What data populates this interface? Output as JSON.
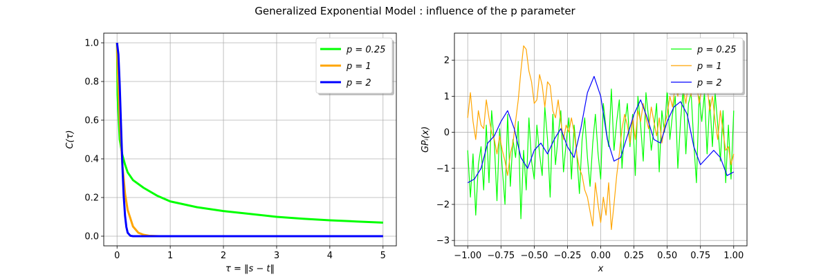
{
  "suptitle": "Generalized Exponential Model : influence of the p parameter",
  "chart_data": [
    {
      "type": "line",
      "xlabel": "τ = ‖s − t‖",
      "ylabel": "C(τ)",
      "xlim": [
        -0.25,
        5.25
      ],
      "ylim": [
        -0.05,
        1.05
      ],
      "xticks": [
        "0",
        "1",
        "2",
        "3",
        "4",
        "5"
      ],
      "yticks": [
        "0.0",
        "0.2",
        "0.4",
        "0.6",
        "0.8",
        "1.0"
      ],
      "grid": true,
      "legend_position": "top-right",
      "series": [
        {
          "name": "p = 0.25",
          "color": "#00ff00",
          "x": [
            0,
            0.01,
            0.02,
            0.05,
            0.1,
            0.15,
            0.2,
            0.3,
            0.5,
            0.75,
            1.0,
            1.5,
            2.0,
            2.5,
            3.0,
            3.5,
            4.0,
            4.5,
            5.0
          ],
          "y": [
            1.0,
            0.73,
            0.67,
            0.5,
            0.42,
            0.37,
            0.33,
            0.29,
            0.25,
            0.21,
            0.18,
            0.15,
            0.13,
            0.115,
            0.1,
            0.09,
            0.082,
            0.076,
            0.07
          ]
        },
        {
          "name": "p = 1",
          "color": "#ffa500",
          "x": [
            0,
            0.02,
            0.05,
            0.1,
            0.15,
            0.2,
            0.3,
            0.4,
            0.5,
            0.6,
            0.8,
            1.0,
            2.0,
            3.0,
            4.0,
            5.0
          ],
          "y": [
            1.0,
            0.82,
            0.61,
            0.37,
            0.22,
            0.135,
            0.05,
            0.018,
            0.007,
            0.002,
            0.0,
            0.0,
            0.0,
            0.0,
            0.0,
            0.0
          ]
        },
        {
          "name": "p = 2",
          "color": "#0000ff",
          "x": [
            0,
            0.025,
            0.05,
            0.075,
            0.1,
            0.125,
            0.15,
            0.175,
            0.2,
            0.25,
            0.3,
            0.4,
            1.0,
            2.0,
            3.0,
            4.0,
            5.0
          ],
          "y": [
            1.0,
            0.94,
            0.78,
            0.57,
            0.37,
            0.21,
            0.105,
            0.047,
            0.018,
            0.002,
            0.0,
            0.0,
            0.0,
            0.0,
            0.0,
            0.0,
            0.0
          ]
        }
      ]
    },
    {
      "type": "line",
      "xlabel": "x",
      "ylabel": "GPᵢ(x)",
      "xlim": [
        -1.1,
        1.1
      ],
      "ylim": [
        -3.15,
        2.75
      ],
      "xticks": [
        "−1.00",
        "−0.75",
        "−0.50",
        "−0.25",
        "0.00",
        "0.25",
        "0.50",
        "0.75",
        "1.00"
      ],
      "yticks": [
        "−3",
        "−2",
        "−1",
        "0",
        "1",
        "2"
      ],
      "grid": true,
      "legend_position": "top-right",
      "series": [
        {
          "name": "p = 0.25",
          "color": "#00ff00",
          "x": [
            -1.0,
            -0.98,
            -0.96,
            -0.94,
            -0.92,
            -0.9,
            -0.88,
            -0.86,
            -0.84,
            -0.82,
            -0.8,
            -0.78,
            -0.76,
            -0.74,
            -0.72,
            -0.7,
            -0.68,
            -0.66,
            -0.64,
            -0.62,
            -0.6,
            -0.58,
            -0.56,
            -0.54,
            -0.52,
            -0.5,
            -0.48,
            -0.46,
            -0.44,
            -0.42,
            -0.4,
            -0.38,
            -0.36,
            -0.34,
            -0.32,
            -0.3,
            -0.28,
            -0.26,
            -0.24,
            -0.22,
            -0.2,
            -0.18,
            -0.16,
            -0.14,
            -0.12,
            -0.1,
            -0.08,
            -0.06,
            -0.04,
            -0.02,
            0.0,
            0.02,
            0.04,
            0.06,
            0.08,
            0.1,
            0.12,
            0.14,
            0.16,
            0.18,
            0.2,
            0.22,
            0.24,
            0.26,
            0.28,
            0.3,
            0.32,
            0.34,
            0.36,
            0.38,
            0.4,
            0.42,
            0.44,
            0.46,
            0.48,
            0.5,
            0.52,
            0.54,
            0.56,
            0.58,
            0.6,
            0.62,
            0.64,
            0.66,
            0.68,
            0.7,
            0.72,
            0.74,
            0.76,
            0.78,
            0.8,
            0.82,
            0.84,
            0.86,
            0.88,
            0.9,
            0.92,
            0.94,
            0.96,
            0.98,
            1.0
          ],
          "y": [
            -0.5,
            -1.8,
            -0.6,
            -2.3,
            -0.9,
            -0.4,
            -1.6,
            0.2,
            -1.4,
            0.6,
            -0.3,
            -1.9,
            0.1,
            -1.0,
            -2.0,
            0.5,
            -1.5,
            -0.2,
            -0.7,
            0.3,
            -2.4,
            -0.5,
            -1.6,
            0.4,
            -0.8,
            -1.3,
            0.2,
            -0.6,
            -1.2,
            0.7,
            -0.2,
            -1.8,
            0.5,
            -0.9,
            -0.1,
            0.6,
            -1.1,
            -0.3,
            0.4,
            -1.3,
            0.2,
            -0.6,
            -1.7,
            -0.2,
            0.4,
            -0.7,
            -1.5,
            -0.3,
            0.5,
            -0.6,
            -1.3,
            0.8,
            0.1,
            -0.4,
            1.2,
            -0.5,
            0.3,
            0.9,
            -1.0,
            0.2,
            0.8,
            -0.4,
            0.5,
            -1.2,
            1.0,
            0.2,
            -0.8,
            1.1,
            0.4,
            -0.5,
            0.1,
            0.8,
            -1.1,
            0.6,
            0.0,
            1.2,
            -0.2,
            0.5,
            1.0,
            -1.0,
            0.3,
            1.2,
            -0.6,
            0.8,
            1.1,
            -0.3,
            -1.4,
            1.0,
            0.3,
            1.1,
            -0.6,
            0.9,
            -0.4,
            1.1,
            0.2,
            -0.8,
            0.6,
            -1.4,
            0.2,
            -1.3,
            0.6
          ]
        },
        {
          "name": "p = 1",
          "color": "#ffa500",
          "x": [
            -1.0,
            -0.98,
            -0.96,
            -0.94,
            -0.92,
            -0.9,
            -0.88,
            -0.86,
            -0.84,
            -0.82,
            -0.8,
            -0.78,
            -0.76,
            -0.74,
            -0.72,
            -0.7,
            -0.68,
            -0.66,
            -0.64,
            -0.62,
            -0.6,
            -0.58,
            -0.56,
            -0.54,
            -0.52,
            -0.5,
            -0.48,
            -0.46,
            -0.44,
            -0.42,
            -0.4,
            -0.38,
            -0.36,
            -0.34,
            -0.32,
            -0.3,
            -0.28,
            -0.26,
            -0.24,
            -0.22,
            -0.2,
            -0.18,
            -0.16,
            -0.14,
            -0.12,
            -0.1,
            -0.08,
            -0.06,
            -0.04,
            -0.02,
            0.0,
            0.02,
            0.04,
            0.06,
            0.08,
            0.1,
            0.12,
            0.14,
            0.16,
            0.18,
            0.2,
            0.22,
            0.24,
            0.26,
            0.28,
            0.3,
            0.32,
            0.34,
            0.36,
            0.38,
            0.4,
            0.42,
            0.44,
            0.46,
            0.48,
            0.5,
            0.52,
            0.54,
            0.56,
            0.58,
            0.6,
            0.62,
            0.64,
            0.66,
            0.68,
            0.7,
            0.72,
            0.74,
            0.76,
            0.78,
            0.8,
            0.82,
            0.84,
            0.86,
            0.88,
            0.9,
            0.92,
            0.94,
            0.96,
            0.98,
            1.0
          ],
          "y": [
            0.4,
            1.1,
            0.3,
            -0.2,
            0.6,
            0.2,
            0.1,
            0.9,
            0.4,
            0.0,
            -0.2,
            -0.6,
            -0.1,
            -0.5,
            -0.8,
            -1.2,
            -0.6,
            -0.3,
            0.3,
            0.9,
            1.7,
            2.4,
            2.3,
            1.7,
            1.4,
            0.8,
            0.9,
            1.6,
            1.3,
            0.7,
            1.4,
            1.3,
            0.6,
            0.4,
            0.9,
            0.3,
            -0.2,
            0.2,
            0.0,
            0.4,
            0.0,
            -0.6,
            -1.0,
            -1.2,
            -1.6,
            -1.8,
            -2.2,
            -2.6,
            -1.4,
            -2.0,
            -2.5,
            -1.8,
            -2.3,
            -1.4,
            -2.7,
            -2.0,
            -1.2,
            -0.6,
            0.1,
            0.5,
            0.2,
            -0.3,
            0.4,
            -0.2,
            0.6,
            0.3,
            0.8,
            0.4,
            0.1,
            0.7,
            0.3,
            -0.1,
            0.4,
            -0.3,
            0.2,
            0.5,
            1.0,
            0.7,
            1.3,
            1.0,
            1.6,
            1.2,
            0.8,
            1.4,
            1.0,
            1.9,
            1.4,
            0.8,
            1.2,
            1.7,
            1.3,
            0.6,
            1.0,
            0.3,
            -0.2,
            0.6,
            0.0,
            -0.5,
            -0.4,
            -0.9,
            -0.6
          ]
        },
        {
          "name": "p = 2",
          "color": "#0000ff",
          "x": [
            -1.0,
            -0.95,
            -0.9,
            -0.85,
            -0.8,
            -0.75,
            -0.7,
            -0.65,
            -0.6,
            -0.55,
            -0.5,
            -0.45,
            -0.4,
            -0.35,
            -0.3,
            -0.25,
            -0.2,
            -0.15,
            -0.1,
            -0.05,
            0.0,
            0.05,
            0.1,
            0.15,
            0.2,
            0.25,
            0.3,
            0.35,
            0.4,
            0.45,
            0.5,
            0.55,
            0.6,
            0.65,
            0.7,
            0.75,
            0.8,
            0.85,
            0.9,
            0.95,
            1.0
          ],
          "y": [
            -1.4,
            -1.3,
            -1.0,
            -0.3,
            -0.1,
            0.3,
            0.6,
            0.1,
            -0.7,
            -1.0,
            -0.5,
            -0.3,
            -0.6,
            -0.2,
            0.1,
            -0.4,
            -0.7,
            0.1,
            1.1,
            1.55,
            1.0,
            -0.2,
            -0.8,
            -0.7,
            -0.1,
            0.5,
            0.9,
            0.4,
            -0.2,
            -0.3,
            0.3,
            0.7,
            0.85,
            0.5,
            -0.4,
            -0.9,
            -0.7,
            -0.5,
            -0.7,
            -1.2,
            -1.1
          ]
        }
      ]
    }
  ]
}
